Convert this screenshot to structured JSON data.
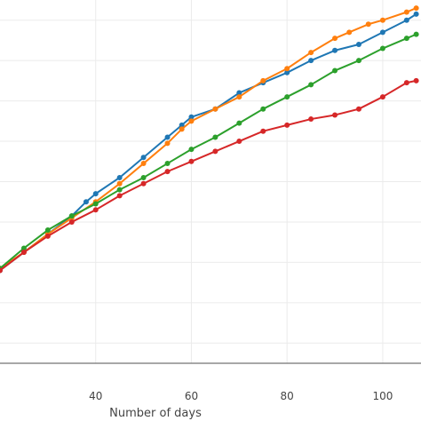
{
  "chart_data": {
    "type": "line",
    "title": "",
    "xlabel": "Number of days",
    "ylabel": "",
    "xlim": [
      20,
      108
    ],
    "ylim": [
      -1,
      17
    ],
    "x_ticks": [
      40,
      60,
      80,
      100
    ],
    "x_tick_labels": [
      "40",
      "60",
      "80",
      "100"
    ],
    "y_gridlines": [
      0,
      2,
      4,
      6,
      8,
      10,
      12,
      14,
      16
    ],
    "grid": true,
    "legend": "none",
    "markers": true,
    "series": [
      {
        "color": "#1f77b4",
        "points": [
          [
            20,
            3.6
          ],
          [
            25,
            4.5
          ],
          [
            30,
            5.4
          ],
          [
            35,
            6.3
          ],
          [
            38,
            7.0
          ],
          [
            40,
            7.4
          ],
          [
            45,
            8.2
          ],
          [
            50,
            9.2
          ],
          [
            55,
            10.2
          ],
          [
            58,
            10.8
          ],
          [
            60,
            11.2
          ],
          [
            65,
            11.6
          ],
          [
            70,
            12.4
          ],
          [
            75,
            12.9
          ],
          [
            80,
            13.4
          ],
          [
            85,
            14.0
          ],
          [
            90,
            14.5
          ],
          [
            95,
            14.8
          ],
          [
            100,
            15.4
          ],
          [
            105,
            16.0
          ],
          [
            107,
            16.3
          ]
        ]
      },
      {
        "color": "#ff7f0e",
        "points": [
          [
            20,
            3.7
          ],
          [
            25,
            4.5
          ],
          [
            30,
            5.4
          ],
          [
            35,
            6.2
          ],
          [
            40,
            7.0
          ],
          [
            45,
            7.9
          ],
          [
            50,
            8.9
          ],
          [
            55,
            9.9
          ],
          [
            58,
            10.6
          ],
          [
            60,
            11.0
          ],
          [
            65,
            11.6
          ],
          [
            70,
            12.2
          ],
          [
            75,
            13.0
          ],
          [
            80,
            13.6
          ],
          [
            85,
            14.4
          ],
          [
            90,
            15.1
          ],
          [
            93,
            15.4
          ],
          [
            97,
            15.8
          ],
          [
            100,
            16.0
          ],
          [
            105,
            16.4
          ],
          [
            107,
            16.6
          ]
        ]
      },
      {
        "color": "#2ca02c",
        "points": [
          [
            20,
            3.7
          ],
          [
            25,
            4.7
          ],
          [
            30,
            5.6
          ],
          [
            35,
            6.3
          ],
          [
            40,
            6.9
          ],
          [
            45,
            7.6
          ],
          [
            50,
            8.2
          ],
          [
            55,
            8.9
          ],
          [
            60,
            9.6
          ],
          [
            65,
            10.2
          ],
          [
            70,
            10.9
          ],
          [
            75,
            11.6
          ],
          [
            80,
            12.2
          ],
          [
            85,
            12.8
          ],
          [
            90,
            13.5
          ],
          [
            95,
            14.0
          ],
          [
            100,
            14.6
          ],
          [
            105,
            15.1
          ],
          [
            107,
            15.3
          ]
        ]
      },
      {
        "color": "#d62728",
        "points": [
          [
            20,
            3.6
          ],
          [
            25,
            4.5
          ],
          [
            30,
            5.3
          ],
          [
            35,
            6.0
          ],
          [
            40,
            6.6
          ],
          [
            45,
            7.3
          ],
          [
            50,
            7.9
          ],
          [
            55,
            8.5
          ],
          [
            60,
            9.0
          ],
          [
            65,
            9.5
          ],
          [
            70,
            10.0
          ],
          [
            75,
            10.5
          ],
          [
            80,
            10.8
          ],
          [
            85,
            11.1
          ],
          [
            90,
            11.3
          ],
          [
            95,
            11.6
          ],
          [
            100,
            12.2
          ],
          [
            105,
            12.9
          ],
          [
            107,
            13.0
          ]
        ]
      }
    ]
  }
}
